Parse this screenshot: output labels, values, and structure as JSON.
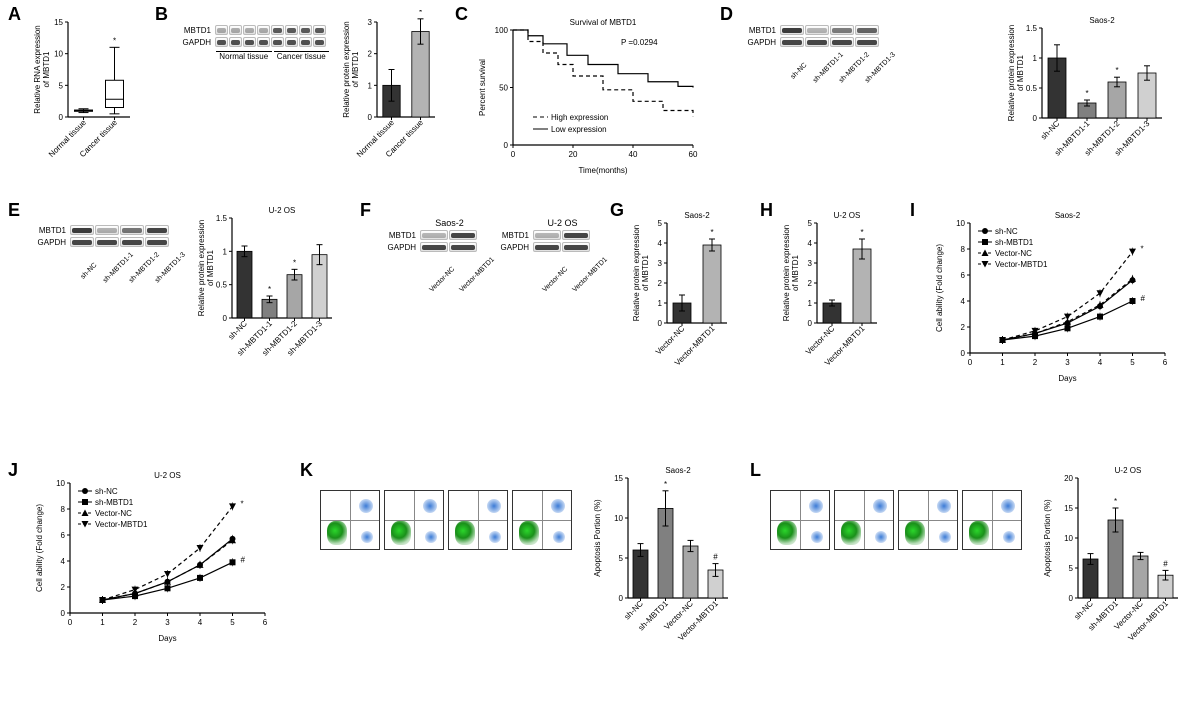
{
  "panelA": {
    "label": "A",
    "ylabel": "Relative RNA expression\nof MBTD1",
    "ylim": [
      0,
      15
    ],
    "yticks": [
      0,
      5,
      10,
      15
    ],
    "groups": [
      "Normal tissue",
      "Cancer tissue"
    ],
    "box_colors": [
      "#ffffff",
      "#ffffff"
    ],
    "normal": {
      "median": 1.0,
      "q1": 0.9,
      "q3": 1.1,
      "min": 0.7,
      "max": 1.3
    },
    "cancer": {
      "median": 2.8,
      "q1": 1.5,
      "q3": 5.8,
      "min": 0.5,
      "max": 11.0
    },
    "annot": "*"
  },
  "panelB": {
    "label": "B",
    "blot_labels": [
      "MBTD1",
      "GAPDH"
    ],
    "lane_groups": [
      "Normal tissue",
      "Cancer tissue"
    ],
    "lanes_per_group": 4,
    "bar": {
      "ylabel": "Relative protein expression\nof MBTD1",
      "ylim": [
        0,
        3
      ],
      "yticks": [
        0,
        1,
        2,
        3
      ],
      "groups": [
        "Normal tissue",
        "Cancer tissue"
      ],
      "values": [
        1.0,
        2.7
      ],
      "err": [
        0.5,
        0.4
      ],
      "colors": [
        "#333333",
        "#b3b3b3"
      ],
      "annot": "*"
    }
  },
  "panelC": {
    "label": "C",
    "title": "Survival of MBTD1",
    "xlabel": "Time(months)",
    "ylabel": "Percent survival",
    "xlim": [
      0,
      60
    ],
    "xticks": [
      0,
      20,
      40,
      60
    ],
    "ylim": [
      0,
      100
    ],
    "yticks": [
      0,
      50,
      100
    ],
    "p": "P =0.0294",
    "legend": [
      "High expression",
      "Low expression"
    ],
    "high": [
      [
        0,
        100
      ],
      [
        5,
        90
      ],
      [
        10,
        80
      ],
      [
        15,
        70
      ],
      [
        20,
        60
      ],
      [
        30,
        48
      ],
      [
        40,
        38
      ],
      [
        50,
        30
      ],
      [
        60,
        25
      ]
    ],
    "low": [
      [
        0,
        100
      ],
      [
        5,
        95
      ],
      [
        10,
        88
      ],
      [
        18,
        78
      ],
      [
        25,
        70
      ],
      [
        35,
        62
      ],
      [
        45,
        55
      ],
      [
        55,
        51
      ],
      [
        60,
        50
      ]
    ]
  },
  "panelD": {
    "label": "D",
    "title": "Saos-2",
    "blot_labels": [
      "MBTD1",
      "GAPDH"
    ],
    "groups": [
      "sh-NC",
      "sh-MBTD1-1",
      "sh-MBTD1-2",
      "sh-MBTD1-3"
    ],
    "bar": {
      "ylabel": "Relative protein expression\nof MBTD1",
      "ylim": [
        0,
        1.5
      ],
      "yticks": [
        0,
        0.5,
        1.0,
        1.5
      ],
      "values": [
        1.0,
        0.25,
        0.6,
        0.75
      ],
      "err": [
        0.22,
        0.05,
        0.08,
        0.12
      ],
      "colors": [
        "#333333",
        "#808080",
        "#a6a6a6",
        "#d0d0d0"
      ],
      "annot": [
        "",
        "*",
        "*",
        ""
      ]
    }
  },
  "panelE": {
    "label": "E",
    "title": "U-2 OS",
    "blot_labels": [
      "MBTD1",
      "GAPDH"
    ],
    "groups": [
      "sh-NC",
      "sh-MBTD1-1",
      "sh-MBTD1-2",
      "sh-MBTD1-3"
    ],
    "bar": {
      "ylabel": "Relative protein expression\nof MBTD1",
      "ylim": [
        0,
        1.5
      ],
      "yticks": [
        0,
        0.5,
        1.0,
        1.5
      ],
      "values": [
        1.0,
        0.28,
        0.65,
        0.95
      ],
      "err": [
        0.08,
        0.05,
        0.08,
        0.15
      ],
      "colors": [
        "#333333",
        "#808080",
        "#a6a6a6",
        "#d0d0d0"
      ],
      "annot": [
        "",
        "*",
        "*",
        ""
      ]
    }
  },
  "panelF": {
    "label": "F",
    "blot_labels": [
      "MBTD1",
      "GAPDH"
    ],
    "sets": [
      {
        "title": "Saos-2",
        "groups": [
          "Vector-NC",
          "Vector-MBTD1"
        ]
      },
      {
        "title": "U-2 OS",
        "groups": [
          "Vector-NC",
          "Vector-MBTD1"
        ]
      }
    ]
  },
  "panelG": {
    "label": "G",
    "title": "Saos-2",
    "ylabel": "Relative protein expression\nof MBTD1",
    "ylim": [
      0,
      5
    ],
    "yticks": [
      0,
      1,
      2,
      3,
      4,
      5
    ],
    "groups": [
      "Vector-NC",
      "Vector-MBTD1"
    ],
    "values": [
      1.0,
      3.9
    ],
    "err": [
      0.4,
      0.3
    ],
    "colors": [
      "#333333",
      "#b3b3b3"
    ],
    "annot": "*"
  },
  "panelH": {
    "label": "H",
    "title": "U-2 OS",
    "ylabel": "Relative protein expression\nof MBTD1",
    "ylim": [
      0,
      5
    ],
    "yticks": [
      0,
      1,
      2,
      3,
      4,
      5
    ],
    "groups": [
      "Vector-NC",
      "Vector-MBTD1"
    ],
    "values": [
      1.0,
      3.7
    ],
    "err": [
      0.15,
      0.5
    ],
    "colors": [
      "#333333",
      "#b3b3b3"
    ],
    "annot": "*"
  },
  "panelI": {
    "label": "I",
    "title": "Saos-2",
    "xlabel": "Days",
    "ylabel": "Cell ability (Fold change)",
    "xlim": [
      0,
      6
    ],
    "xticks": [
      0,
      1,
      2,
      3,
      4,
      5,
      6
    ],
    "ylim": [
      0,
      10
    ],
    "yticks": [
      0,
      2,
      4,
      6,
      8,
      10
    ],
    "legend": [
      {
        "name": "sh-NC",
        "marker": "circle",
        "dash": "solid"
      },
      {
        "name": "sh-MBTD1",
        "marker": "square",
        "dash": "solid"
      },
      {
        "name": "Vector-NC",
        "marker": "triangle",
        "dash": "dash"
      },
      {
        "name": "Vector-MBTD1",
        "marker": "invtriangle",
        "dash": "dash"
      }
    ],
    "series": {
      "sh-NC": [
        [
          1,
          1
        ],
        [
          2,
          1.5
        ],
        [
          3,
          2.3
        ],
        [
          4,
          3.6
        ],
        [
          5,
          5.6
        ]
      ],
      "sh-MBTD1": [
        [
          1,
          1
        ],
        [
          2,
          1.3
        ],
        [
          3,
          1.9
        ],
        [
          4,
          2.8
        ],
        [
          5,
          4.0
        ]
      ],
      "Vector-NC": [
        [
          1,
          1
        ],
        [
          2,
          1.5
        ],
        [
          3,
          2.4
        ],
        [
          4,
          3.7
        ],
        [
          5,
          5.7
        ]
      ],
      "Vector-MBTD1": [
        [
          1,
          1
        ],
        [
          2,
          1.7
        ],
        [
          3,
          2.8
        ],
        [
          4,
          4.6
        ],
        [
          5,
          7.8
        ]
      ]
    },
    "annot_top": "*",
    "annot_bot": "#"
  },
  "panelJ": {
    "label": "J",
    "title": "U-2 OS",
    "xlabel": "Days",
    "ylabel": "Cell ability (Fold change)",
    "xlim": [
      0,
      6
    ],
    "xticks": [
      0,
      1,
      2,
      3,
      4,
      5,
      6
    ],
    "ylim": [
      0,
      10
    ],
    "yticks": [
      0,
      2,
      4,
      6,
      8,
      10
    ],
    "legend": [
      {
        "name": "sh-NC",
        "marker": "circle",
        "dash": "solid"
      },
      {
        "name": "sh-MBTD1",
        "marker": "square",
        "dash": "solid"
      },
      {
        "name": "Vector-NC",
        "marker": "triangle",
        "dash": "dash"
      },
      {
        "name": "Vector-MBTD1",
        "marker": "invtriangle",
        "dash": "dash"
      }
    ],
    "series": {
      "sh-NC": [
        [
          1,
          1
        ],
        [
          2,
          1.5
        ],
        [
          3,
          2.4
        ],
        [
          4,
          3.7
        ],
        [
          5,
          5.7
        ]
      ],
      "sh-MBTD1": [
        [
          1,
          1
        ],
        [
          2,
          1.3
        ],
        [
          3,
          1.9
        ],
        [
          4,
          2.7
        ],
        [
          5,
          3.9
        ]
      ],
      "Vector-NC": [
        [
          1,
          1
        ],
        [
          2,
          1.5
        ],
        [
          3,
          2.4
        ],
        [
          4,
          3.7
        ],
        [
          5,
          5.6
        ]
      ],
      "Vector-MBTD1": [
        [
          1,
          1
        ],
        [
          2,
          1.8
        ],
        [
          3,
          3.0
        ],
        [
          4,
          5.0
        ],
        [
          5,
          8.2
        ]
      ]
    },
    "annot_top": "*",
    "annot_bot": "#"
  },
  "panelK": {
    "label": "K",
    "title": "Saos-2",
    "ylabel": "Apoptosis Portion (%)",
    "ylim": [
      0,
      15
    ],
    "yticks": [
      0,
      5,
      10,
      15
    ],
    "groups": [
      "sh-NC",
      "sh-MBTD1",
      "Vector-NC",
      "Vector-MBTD1"
    ],
    "values": [
      6.0,
      11.2,
      6.5,
      3.5
    ],
    "err": [
      0.8,
      2.2,
      0.7,
      0.8
    ],
    "colors": [
      "#333333",
      "#808080",
      "#a6a6a6",
      "#d0d0d0"
    ],
    "annot": [
      "",
      "*",
      "",
      "#"
    ]
  },
  "panelL": {
    "label": "L",
    "title": "U-2 OS",
    "ylabel": "Apoptosis Portion (%)",
    "ylim": [
      0,
      20
    ],
    "yticks": [
      0,
      5,
      10,
      15,
      20
    ],
    "groups": [
      "sh-NC",
      "sh-MBTD1",
      "Vector-NC",
      "Vector-MBTD1"
    ],
    "values": [
      6.5,
      13.0,
      7.0,
      3.8
    ],
    "err": [
      0.9,
      2.0,
      0.6,
      0.8
    ],
    "colors": [
      "#333333",
      "#808080",
      "#a6a6a6",
      "#d0d0d0"
    ],
    "annot": [
      "",
      "*",
      "",
      "#"
    ]
  },
  "style": {
    "axis_color": "#000000",
    "line_color": "#000000",
    "font_family": "Arial",
    "label_fontsize": 9,
    "tick_fontsize": 8
  }
}
